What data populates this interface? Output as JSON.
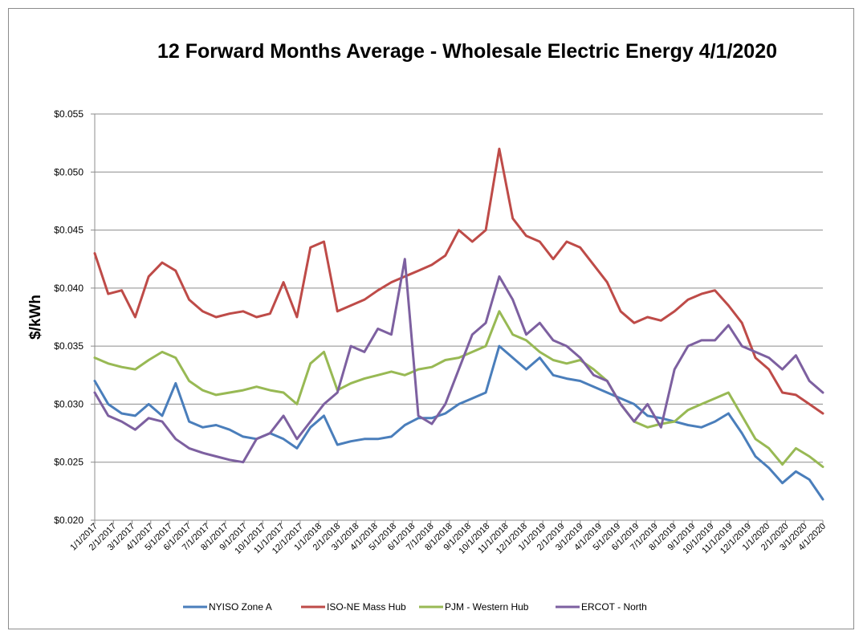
{
  "chart_data": {
    "type": "line",
    "title": "12 Forward Months Average - Wholesale Electric Energy 4/1/2020",
    "xlabel": "",
    "ylabel": "$/kWh",
    "ylim": [
      0.02,
      0.055
    ],
    "yticks": [
      0.02,
      0.025,
      0.03,
      0.035,
      0.04,
      0.045,
      0.05,
      0.055
    ],
    "ytick_labels": [
      "$0.020",
      "$0.025",
      "$0.030",
      "$0.035",
      "$0.040",
      "$0.045",
      "$0.050",
      "$0.055"
    ],
    "grid": true,
    "legend_position": "bottom",
    "x_tick_labels": [
      "1/1/2017",
      "2/1/2017",
      "3/1/2017",
      "4/1/2017",
      "5/1/2017",
      "6/1/2017",
      "7/1/2017",
      "8/1/2017",
      "9/1/2017",
      "10/1/2017",
      "11/1/2017",
      "12/1/2017",
      "1/1/2018",
      "2/1/2018",
      "3/1/2018",
      "4/1/2018",
      "5/1/2018",
      "6/1/2018",
      "7/1/2018",
      "8/1/2018",
      "9/1/2018",
      "10/1/2018",
      "11/1/2018",
      "12/1/2018",
      "1/1/2019",
      "2/1/2019",
      "3/1/2019",
      "4/1/2019",
      "5/1/2019",
      "6/1/2019",
      "7/1/2019",
      "8/1/2019",
      "9/1/2019",
      "10/1/2019",
      "11/1/2019",
      "12/1/2019",
      "1/1/2020",
      "2/1/2020",
      "3/1/2020",
      "4/1/2020"
    ],
    "series": [
      {
        "name": "NYISO Zone A",
        "color": "#4a7ebb",
        "values": [
          0.032,
          0.03,
          0.0292,
          0.029,
          0.03,
          0.029,
          0.0318,
          0.0285,
          0.028,
          0.0282,
          0.0278,
          0.0272,
          0.027,
          0.0275,
          0.027,
          0.0262,
          0.028,
          0.029,
          0.0265,
          0.0268,
          0.027,
          0.027,
          0.0272,
          0.0282,
          0.0288,
          0.0288,
          0.0292,
          0.03,
          0.0305,
          0.031,
          0.035,
          0.034,
          0.033,
          0.034,
          0.0325,
          0.0322,
          0.032,
          0.0315,
          0.031,
          0.0305,
          0.03,
          0.029,
          0.0288,
          0.0285,
          0.0282,
          0.028,
          0.0285,
          0.0292,
          0.0275,
          0.0255,
          0.0245,
          0.0232,
          0.0242,
          0.0235,
          0.0218
        ]
      },
      {
        "name": "ISO-NE Mass Hub",
        "color": "#be4b48",
        "values": [
          0.043,
          0.0395,
          0.0398,
          0.0375,
          0.041,
          0.0422,
          0.0415,
          0.039,
          0.038,
          0.0375,
          0.0378,
          0.038,
          0.0375,
          0.0378,
          0.0405,
          0.0375,
          0.0435,
          0.044,
          0.038,
          0.0385,
          0.039,
          0.0398,
          0.0405,
          0.041,
          0.0415,
          0.042,
          0.0428,
          0.045,
          0.044,
          0.045,
          0.052,
          0.046,
          0.0445,
          0.044,
          0.0425,
          0.044,
          0.0435,
          0.042,
          0.0405,
          0.038,
          0.037,
          0.0375,
          0.0372,
          0.038,
          0.039,
          0.0395,
          0.0398,
          0.0385,
          0.037,
          0.034,
          0.033,
          0.031,
          0.0308,
          0.03,
          0.0292
        ]
      },
      {
        "name": "PJM - Western Hub",
        "color": "#98b954",
        "values": [
          0.034,
          0.0335,
          0.0332,
          0.033,
          0.0338,
          0.0345,
          0.034,
          0.032,
          0.0312,
          0.0308,
          0.031,
          0.0312,
          0.0315,
          0.0312,
          0.031,
          0.03,
          0.0335,
          0.0345,
          0.0312,
          0.0318,
          0.0322,
          0.0325,
          0.0328,
          0.0325,
          0.033,
          0.0332,
          0.0338,
          0.034,
          0.0345,
          0.035,
          0.038,
          0.036,
          0.0355,
          0.0345,
          0.0338,
          0.0335,
          0.0338,
          0.033,
          0.032,
          0.03,
          0.0285,
          0.028,
          0.0283,
          0.0285,
          0.0295,
          0.03,
          0.0305,
          0.031,
          0.029,
          0.027,
          0.0262,
          0.0248,
          0.0262,
          0.0255,
          0.0246
        ]
      },
      {
        "name": "ERCOT - North",
        "color": "#7d60a0",
        "values": [
          0.031,
          0.029,
          0.0285,
          0.0278,
          0.0288,
          0.0285,
          0.027,
          0.0262,
          0.0258,
          0.0255,
          0.0252,
          0.025,
          0.027,
          0.0275,
          0.029,
          0.027,
          0.0285,
          0.03,
          0.031,
          0.035,
          0.0345,
          0.0365,
          0.036,
          0.0425,
          0.029,
          0.0283,
          0.03,
          0.033,
          0.036,
          0.037,
          0.041,
          0.039,
          0.036,
          0.037,
          0.0355,
          0.035,
          0.034,
          0.0325,
          0.032,
          0.03,
          0.0285,
          0.03,
          0.028,
          0.033,
          0.035,
          0.0355,
          0.0355,
          0.0368,
          0.035,
          0.0345,
          0.034,
          0.033,
          0.0342,
          0.032,
          0.031
        ]
      }
    ]
  }
}
